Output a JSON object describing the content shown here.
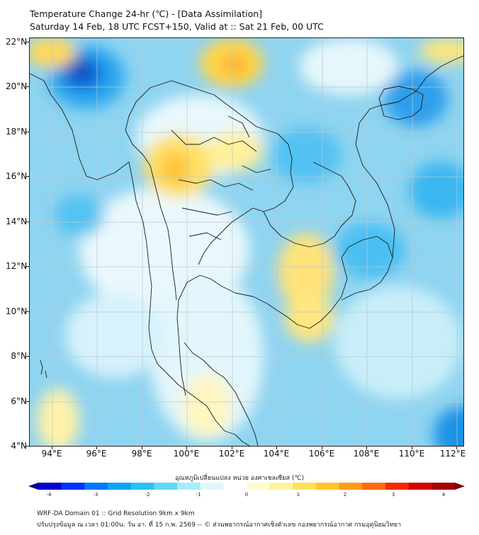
{
  "title_line1": "Temperature Change 24-hr (℃) - [Data Assimilation]",
  "title_line2": "Saturday 14 Feb, 18 UTC FCST+150, Valid at :: Sat 21 Feb, 00 UTC",
  "lat_labels": [
    "22°N",
    "20°N",
    "18°N",
    "16°N",
    "14°N",
    "12°N",
    "10°N",
    "8°N",
    "6°N",
    "4°N"
  ],
  "lon_labels": [
    "94°E",
    "96°E",
    "98°E",
    "100°E",
    "102°E",
    "104°E",
    "106°E",
    "108°E",
    "110°E",
    "112°E"
  ],
  "colorbar": {
    "label": "อุณหภูมิเปลี่ยนแปลง หน่วย องศาเซลเซียส (℃)",
    "ticks": [
      "-4",
      "-3",
      "-2",
      "-1",
      "0",
      "1",
      "2",
      "3",
      "4"
    ],
    "colors": [
      "#000080",
      "#0000cd",
      "#0033ff",
      "#0077ff",
      "#0aa5f5",
      "#29c2f2",
      "#63d8f5",
      "#a6ecfa",
      "#dff7fc",
      "#ffffff",
      "#fffbd0",
      "#fff29a",
      "#ffe05a",
      "#ffc52a",
      "#ff9a14",
      "#ff6a0a",
      "#f52a05",
      "#d40000",
      "#a80000",
      "#7a0000"
    ]
  },
  "footer_line1": "WRF-DA Domain 01 :: Grid Resolution 9km x 9km",
  "footer_line2": "ปรับปรุงข้อมูล ณ เวลา 01:00น. วัน อา. ที่ 15 ก.พ. 2569 -- © ส่วนพยากรณ์อากาศเชิงตัวเลข กองพยากรณ์อากาศ กรมอุตุนิยมวิทยา"
}
